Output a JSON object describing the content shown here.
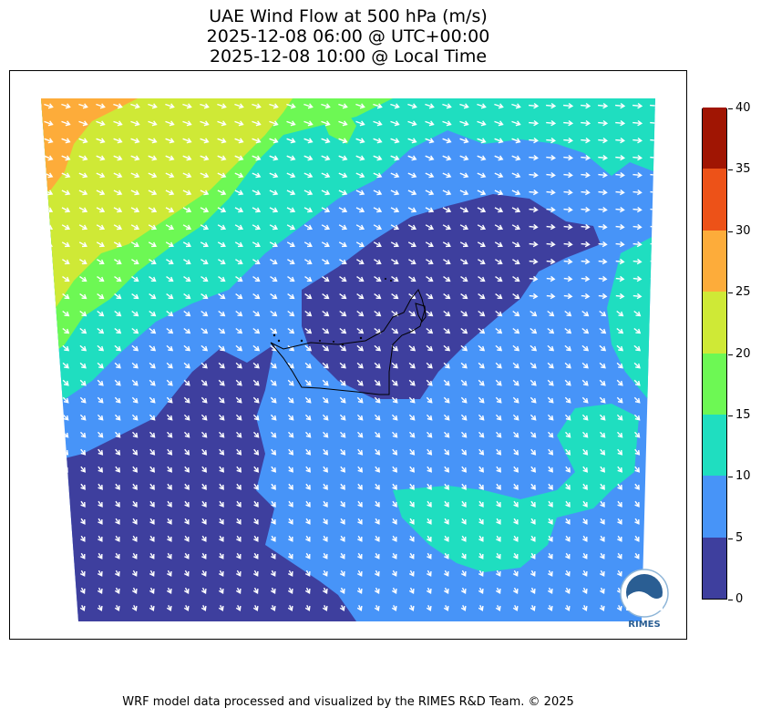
{
  "title": {
    "line1": "UAE Wind Flow at 500 hPa (m/s)",
    "line2": "2025-12-08 06:00 @ UTC+00:00",
    "line3": "2025-12-08 10:00 @ Local Time"
  },
  "colorbar": {
    "ticks": [
      "0",
      "5",
      "10",
      "15",
      "20",
      "25",
      "30",
      "35",
      "40"
    ],
    "colors": [
      "#3e3f9e",
      "#4794f8",
      "#1fdec0",
      "#6df854",
      "#cfe936",
      "#fdac3a",
      "#ed5218",
      "#a01503"
    ]
  },
  "map": {
    "logo_text": "RIMES",
    "arrow_color": "#ffffff",
    "border_color": "#000000"
  },
  "credit": "WRF model data processed and visualized by the RIMES R&D Team. © 2025"
}
